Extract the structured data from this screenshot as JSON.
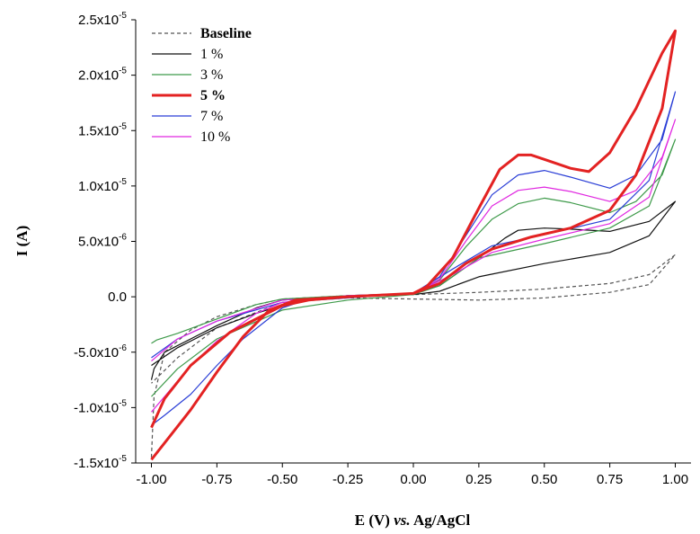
{
  "chart_data": {
    "type": "line",
    "xlabel": {
      "main": "E (V)",
      "vs": "vs.",
      "ref": "Ag/AgCl"
    },
    "ylabel": "I (A)",
    "xlim": [
      -1.06,
      1.06
    ],
    "ylim": [
      -1.5e-05,
      2.5e-05
    ],
    "x_ticks": [
      -1.0,
      -0.75,
      -0.5,
      -0.25,
      0.0,
      0.25,
      0.5,
      0.75,
      1.0
    ],
    "x_tick_labels": [
      "-1.00",
      "-0.75",
      "-0.50",
      "-0.25",
      "0.00",
      "0.25",
      "0.50",
      "0.75",
      "1.00"
    ],
    "y_ticks": [
      {
        "value": -1.5e-05,
        "mantissa": "-1.5x10",
        "exp": "-5"
      },
      {
        "value": -1e-05,
        "mantissa": "-1.0x10",
        "exp": "-5"
      },
      {
        "value": -5e-06,
        "mantissa": "-5.0x10",
        "exp": "-6"
      },
      {
        "value": 0,
        "mantissa": "0.0",
        "exp": ""
      },
      {
        "value": 5e-06,
        "mantissa": "5.0x10",
        "exp": "-6"
      },
      {
        "value": 1e-05,
        "mantissa": "1.0x10",
        "exp": "-5"
      },
      {
        "value": 1.5e-05,
        "mantissa": "1.5x10",
        "exp": "-5"
      },
      {
        "value": 2e-05,
        "mantissa": "2.0x10",
        "exp": "-5"
      },
      {
        "value": 2.5e-05,
        "mantissa": "2.5x10",
        "exp": "-5"
      }
    ],
    "grid": false,
    "legend_position": "top-left",
    "series": [
      {
        "name": "Baseline",
        "color": "#555555",
        "dash": true,
        "bold": false,
        "points": [
          [
            -1.0,
            -1.45e-05
          ],
          [
            -0.99,
            -9e-06
          ],
          [
            -0.95,
            -5e-06
          ],
          [
            -0.85,
            -3e-06
          ],
          [
            -0.75,
            -1.8e-06
          ],
          [
            -0.6,
            -7e-07
          ],
          [
            -0.5,
            -2e-07
          ],
          [
            -0.25,
            1e-07
          ],
          [
            0.0,
            2e-07
          ],
          [
            0.25,
            4e-07
          ],
          [
            0.5,
            7e-07
          ],
          [
            0.75,
            1.2e-06
          ],
          [
            0.9,
            2e-06
          ],
          [
            1.0,
            3.8e-06
          ],
          [
            0.9,
            1.1e-06
          ],
          [
            0.75,
            4e-07
          ],
          [
            0.5,
            -1e-07
          ],
          [
            0.25,
            -3e-07
          ],
          [
            0.0,
            -2e-07
          ],
          [
            -0.25,
            -1e-07
          ],
          [
            -0.5,
            -5e-07
          ],
          [
            -0.75,
            -2.8e-06
          ],
          [
            -0.9,
            -5.5e-06
          ],
          [
            -1.0,
            -7.8e-06
          ]
        ]
      },
      {
        "name": "1 %",
        "color": "#111111",
        "dash": false,
        "bold": false,
        "points": [
          [
            -1.0,
            -7.5e-06
          ],
          [
            -0.99,
            -6.5e-06
          ],
          [
            -0.95,
            -5e-06
          ],
          [
            -0.85,
            -3.8e-06
          ],
          [
            -0.75,
            -2.6e-06
          ],
          [
            -0.6,
            -1e-06
          ],
          [
            -0.5,
            -3e-07
          ],
          [
            -0.25,
            1e-07
          ],
          [
            0.0,
            3e-07
          ],
          [
            0.1,
            1e-06
          ],
          [
            0.25,
            3.5e-06
          ],
          [
            0.35,
            5.3e-06
          ],
          [
            0.4,
            6e-06
          ],
          [
            0.5,
            6.2e-06
          ],
          [
            0.6,
            6.1e-06
          ],
          [
            0.75,
            5.9e-06
          ],
          [
            0.9,
            6.8e-06
          ],
          [
            1.0,
            8.6e-06
          ],
          [
            0.9,
            5.5e-06
          ],
          [
            0.75,
            4e-06
          ],
          [
            0.5,
            3e-06
          ],
          [
            0.25,
            1.8e-06
          ],
          [
            0.1,
            5e-07
          ],
          [
            0.0,
            2e-07
          ],
          [
            -0.25,
            0
          ],
          [
            -0.45,
            -4e-07
          ],
          [
            -0.6,
            -1.5e-06
          ],
          [
            -0.75,
            -2.8e-06
          ],
          [
            -0.9,
            -4.6e-06
          ],
          [
            -1.0,
            -6.2e-06
          ]
        ]
      },
      {
        "name": "3 %",
        "color": "#3e9a4a",
        "dash": false,
        "bold": false,
        "points": [
          [
            -1.0,
            -4.2e-06
          ],
          [
            -0.98,
            -3.9e-06
          ],
          [
            -0.9,
            -3.3e-06
          ],
          [
            -0.75,
            -2e-06
          ],
          [
            -0.6,
            -7e-07
          ],
          [
            -0.5,
            -2e-07
          ],
          [
            -0.25,
            1e-07
          ],
          [
            0.0,
            3e-07
          ],
          [
            0.1,
            1.5e-06
          ],
          [
            0.2,
            4.5e-06
          ],
          [
            0.3,
            7e-06
          ],
          [
            0.4,
            8.4e-06
          ],
          [
            0.5,
            8.9e-06
          ],
          [
            0.6,
            8.5e-06
          ],
          [
            0.75,
            7.6e-06
          ],
          [
            0.85,
            8.6e-06
          ],
          [
            0.95,
            1.1e-05
          ],
          [
            1.0,
            1.42e-05
          ],
          [
            0.9,
            8.2e-06
          ],
          [
            0.75,
            6.2e-06
          ],
          [
            0.5,
            4.8e-06
          ],
          [
            0.25,
            3.5e-06
          ],
          [
            0.1,
            1e-06
          ],
          [
            0.0,
            2e-07
          ],
          [
            -0.25,
            -3e-07
          ],
          [
            -0.5,
            -1.2e-06
          ],
          [
            -0.75,
            -3.8e-06
          ],
          [
            -0.9,
            -6.5e-06
          ],
          [
            -1.0,
            -9e-06
          ]
        ]
      },
      {
        "name": "5 %",
        "color": "#e32222",
        "dash": false,
        "bold": true,
        "points": [
          [
            -1.0,
            -1.47e-05
          ],
          [
            -0.95,
            -1.32e-05
          ],
          [
            -0.85,
            -1.02e-05
          ],
          [
            -0.75,
            -6.8e-06
          ],
          [
            -0.65,
            -3.6e-06
          ],
          [
            -0.55,
            -1.2e-06
          ],
          [
            -0.45,
            -3e-07
          ],
          [
            -0.25,
            0
          ],
          [
            0.0,
            3e-07
          ],
          [
            0.05,
            9e-07
          ],
          [
            0.15,
            3.5e-06
          ],
          [
            0.25,
            8e-06
          ],
          [
            0.33,
            1.15e-05
          ],
          [
            0.4,
            1.28e-05
          ],
          [
            0.45,
            1.28e-05
          ],
          [
            0.5,
            1.24e-05
          ],
          [
            0.6,
            1.16e-05
          ],
          [
            0.67,
            1.13e-05
          ],
          [
            0.75,
            1.3e-05
          ],
          [
            0.85,
            1.7e-05
          ],
          [
            0.95,
            2.2e-05
          ],
          [
            1.0,
            2.4e-05
          ],
          [
            0.95,
            1.7e-05
          ],
          [
            0.85,
            1.1e-05
          ],
          [
            0.75,
            7.8e-06
          ],
          [
            0.6,
            6.2e-06
          ],
          [
            0.45,
            5.4e-06
          ],
          [
            0.3,
            4.3e-06
          ],
          [
            0.2,
            3e-06
          ],
          [
            0.1,
            1.2e-06
          ],
          [
            0.0,
            3e-07
          ],
          [
            -0.25,
            0
          ],
          [
            -0.4,
            -3e-07
          ],
          [
            -0.5,
            -8e-07
          ],
          [
            -0.7,
            -3.2e-06
          ],
          [
            -0.85,
            -6.2e-06
          ],
          [
            -0.95,
            -9.2e-06
          ],
          [
            -1.0,
            -1.18e-05
          ]
        ]
      },
      {
        "name": "7 %",
        "color": "#2a3ed6",
        "dash": false,
        "bold": false,
        "points": [
          [
            -1.0,
            -1.16e-05
          ],
          [
            -0.95,
            -1.07e-05
          ],
          [
            -0.85,
            -8.8e-06
          ],
          [
            -0.75,
            -6.2e-06
          ],
          [
            -0.65,
            -3.8e-06
          ],
          [
            -0.5,
            -1e-06
          ],
          [
            -0.4,
            -2e-07
          ],
          [
            -0.25,
            0
          ],
          [
            0.0,
            3e-07
          ],
          [
            0.1,
            1.8e-06
          ],
          [
            0.2,
            5.5e-06
          ],
          [
            0.3,
            9.2e-06
          ],
          [
            0.4,
            1.1e-05
          ],
          [
            0.5,
            1.14e-05
          ],
          [
            0.6,
            1.08e-05
          ],
          [
            0.75,
            9.8e-06
          ],
          [
            0.85,
            1.1e-05
          ],
          [
            0.95,
            1.42e-05
          ],
          [
            1.0,
            1.85e-05
          ],
          [
            0.9,
            1.05e-05
          ],
          [
            0.75,
            7e-06
          ],
          [
            0.5,
            5.6e-06
          ],
          [
            0.3,
            4.6e-06
          ],
          [
            0.15,
            2.5e-06
          ],
          [
            0.0,
            3e-07
          ],
          [
            -0.25,
            -1e-07
          ],
          [
            -0.5,
            -5e-07
          ],
          [
            -0.75,
            -2.2e-06
          ],
          [
            -0.9,
            -3.8e-06
          ],
          [
            -1.0,
            -5.5e-06
          ]
        ]
      },
      {
        "name": "10 %",
        "color": "#e028e0",
        "dash": false,
        "bold": false,
        "points": [
          [
            -1.0,
            -1.04e-05
          ],
          [
            -0.95,
            -9e-06
          ],
          [
            -0.85,
            -6.2e-06
          ],
          [
            -0.75,
            -4e-06
          ],
          [
            -0.6,
            -1.5e-06
          ],
          [
            -0.5,
            -5e-07
          ],
          [
            -0.25,
            1e-07
          ],
          [
            0.0,
            3e-07
          ],
          [
            0.1,
            1.6e-06
          ],
          [
            0.2,
            5e-06
          ],
          [
            0.3,
            8.2e-06
          ],
          [
            0.4,
            9.6e-06
          ],
          [
            0.5,
            9.9e-06
          ],
          [
            0.6,
            9.5e-06
          ],
          [
            0.75,
            8.6e-06
          ],
          [
            0.85,
            9.6e-06
          ],
          [
            0.95,
            1.26e-05
          ],
          [
            1.0,
            1.6e-05
          ],
          [
            0.9,
            9e-06
          ],
          [
            0.75,
            6.6e-06
          ],
          [
            0.5,
            5.2e-06
          ],
          [
            0.3,
            4e-06
          ],
          [
            0.15,
            2e-06
          ],
          [
            0.0,
            3e-07
          ],
          [
            -0.25,
            0
          ],
          [
            -0.5,
            -3e-07
          ],
          [
            -0.75,
            -2.2e-06
          ],
          [
            -0.9,
            -3.8e-06
          ],
          [
            -1.0,
            -5.8e-06
          ]
        ]
      }
    ]
  }
}
